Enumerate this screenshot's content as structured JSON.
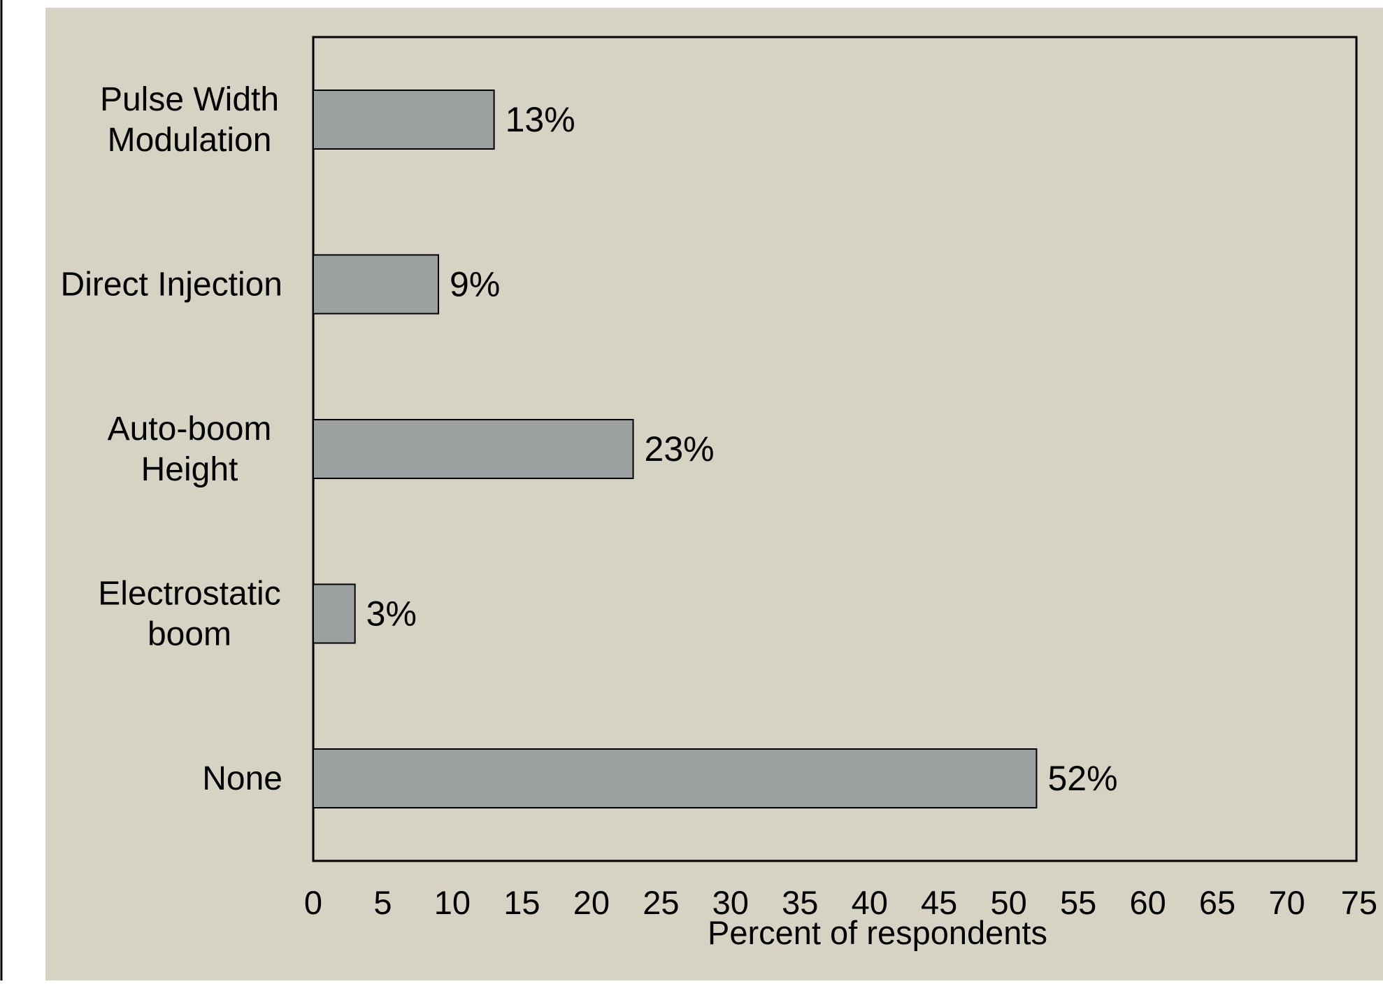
{
  "chart_data": {
    "type": "bar",
    "orientation": "horizontal",
    "categories": [
      [
        "Pulse Width",
        "Modulation"
      ],
      [
        "Direct Injection"
      ],
      [
        "Auto-boom",
        "Height"
      ],
      [
        "Electrostatic",
        "boom"
      ],
      [
        "None"
      ]
    ],
    "values": [
      13,
      9,
      23,
      3,
      52
    ],
    "value_labels": [
      "13%",
      "9%",
      "23%",
      "3%",
      "52%"
    ],
    "xlabel": "Percent of respondents",
    "xlim": [
      0,
      75
    ],
    "xticks": [
      0,
      5,
      10,
      15,
      20,
      25,
      30,
      35,
      40,
      45,
      50,
      55,
      60,
      65,
      70,
      75
    ],
    "grid": false,
    "colors": {
      "panel_background": "#d6d3c5",
      "bar_fill": "#9da0a1",
      "bar_stroke": "#000000"
    }
  }
}
